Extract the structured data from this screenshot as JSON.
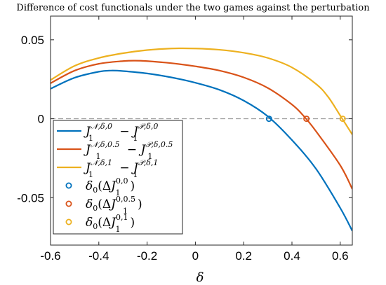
{
  "chart_data": {
    "type": "line",
    "title": "Difference of cost functionals under the two games against the perturbation",
    "xlabel": "δ",
    "ylabel": "",
    "xlim": [
      -0.6,
      0.65
    ],
    "ylim": [
      -0.08,
      0.065
    ],
    "xticks": [
      -0.6,
      -0.4,
      -0.2,
      0,
      0.2,
      0.4,
      0.6
    ],
    "xtick_labels": [
      "-0.6",
      "-0.4",
      "-0.2",
      "0",
      "0.2",
      "0.4",
      "0.6"
    ],
    "yticks": [
      -0.05,
      0,
      0.05
    ],
    "ytick_labels": [
      "-0.05",
      "0",
      "0.05"
    ],
    "grid": false,
    "zero_reference_line": true,
    "legend_position": "lower-left",
    "series": [
      {
        "name": "J1^{N,δ,0} − J1^{P,δ,0}",
        "color": "#0072BD",
        "x": [
          -0.6,
          -0.5,
          -0.4,
          -0.35,
          -0.3,
          -0.2,
          -0.1,
          0.0,
          0.1,
          0.2,
          0.3,
          0.4,
          0.5,
          0.6,
          0.65
        ],
        "y": [
          0.019,
          0.026,
          0.0298,
          0.0305,
          0.0302,
          0.0287,
          0.0262,
          0.0228,
          0.0183,
          0.0115,
          0.0015,
          -0.0135,
          -0.0318,
          -0.0565,
          -0.071
        ]
      },
      {
        "name": "J1^{N,δ,0.5} − J1^{P,δ,0.5}",
        "color": "#D95319",
        "x": [
          -0.6,
          -0.5,
          -0.4,
          -0.3,
          -0.25,
          -0.2,
          -0.1,
          0.0,
          0.1,
          0.2,
          0.3,
          0.4,
          0.45,
          0.5,
          0.6,
          0.65
        ],
        "y": [
          0.0225,
          0.0305,
          0.0348,
          0.0365,
          0.0368,
          0.0365,
          0.0352,
          0.0332,
          0.0305,
          0.0262,
          0.0195,
          0.009,
          0.0015,
          -0.008,
          -0.0295,
          -0.0445
        ]
      },
      {
        "name": "J1^{N,δ,1} − J1^{P,δ,1}",
        "color": "#EDB120",
        "x": [
          -0.6,
          -0.5,
          -0.4,
          -0.3,
          -0.2,
          -0.1,
          0.0,
          0.1,
          0.2,
          0.3,
          0.4,
          0.5,
          0.55,
          0.6,
          0.65
        ],
        "y": [
          0.0245,
          0.0335,
          0.0385,
          0.0415,
          0.0435,
          0.0445,
          0.0445,
          0.0437,
          0.0418,
          0.0385,
          0.0325,
          0.022,
          0.0138,
          0.002,
          -0.01
        ]
      }
    ],
    "markers": [
      {
        "name": "δ0(ΔJ1^{0,0})",
        "color": "#0072BD",
        "x": 0.305,
        "y": 0
      },
      {
        "name": "δ0(ΔJ1^{0,0.5})",
        "color": "#D95319",
        "x": 0.46,
        "y": 0
      },
      {
        "name": "δ0(ΔJ1^{0,1})",
        "color": "#EDB120",
        "x": 0.61,
        "y": 0
      }
    ],
    "legend_entries": [
      {
        "kind": "line",
        "color": "#0072BD",
        "main": "J",
        "sub": "1",
        "sup": "𝒩,δ,0",
        "minus": "−",
        "main2": "J",
        "sub2": "1",
        "sup2": "𝒫,δ,0"
      },
      {
        "kind": "line",
        "color": "#D95319",
        "main": "J",
        "sub": "1",
        "sup": "𝒩,δ,0.5",
        "minus": "−",
        "main2": "J",
        "sub2": "1",
        "sup2": "𝒫,δ,0.5"
      },
      {
        "kind": "line",
        "color": "#EDB120",
        "main": "J",
        "sub": "1",
        "sup": "𝒩,δ,1",
        "minus": "−",
        "main2": "J",
        "sub2": "1",
        "sup2": "𝒫,δ,1"
      },
      {
        "kind": "marker",
        "color": "#0072BD",
        "pre": "δ",
        "pre_sub": "0",
        "open": "(Δ",
        "main": "J",
        "sub": "1",
        "sup": "0,0",
        "close": ")"
      },
      {
        "kind": "marker",
        "color": "#D95319",
        "pre": "δ",
        "pre_sub": "0",
        "open": "(Δ",
        "main": "J",
        "sub": "1",
        "sup": "0,0.5",
        "close": ")"
      },
      {
        "kind": "marker",
        "color": "#EDB120",
        "pre": "δ",
        "pre_sub": "0",
        "open": "(Δ",
        "main": "J",
        "sub": "1",
        "sup": "0,1",
        "close": ")"
      }
    ]
  }
}
